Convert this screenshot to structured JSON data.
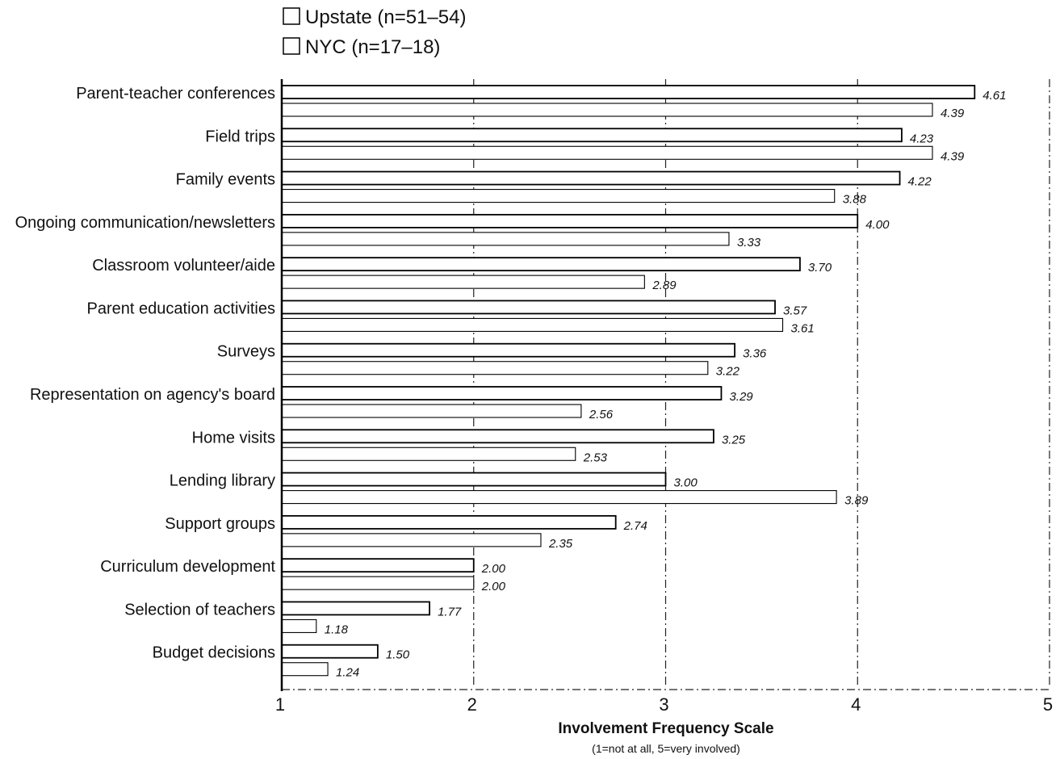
{
  "chart_data": {
    "type": "bar",
    "orientation": "horizontal",
    "title": "",
    "xlabel": "Involvement Frequency Scale",
    "xlabel_note": "(1=not at all, 5=very involved)",
    "xlim": [
      1,
      5
    ],
    "xticks": [
      1,
      2,
      3,
      4,
      5
    ],
    "grid": true,
    "legend_position": "top-left",
    "categories": [
      "Parent-teacher conferences",
      "Field trips",
      "Family events",
      "Ongoing communication/newsletters",
      "Classroom volunteer/aide",
      "Parent education activities",
      "Surveys",
      "Representation on agency's board",
      "Home visits",
      "Lending library",
      "Support groups",
      "Curriculum development",
      "Selection of teachers",
      "Budget decisions"
    ],
    "series": [
      {
        "name": "Upstate (n=51–54)",
        "values": [
          4.61,
          4.23,
          4.22,
          4.0,
          3.7,
          3.57,
          3.36,
          3.29,
          3.25,
          3.0,
          2.74,
          2.0,
          1.77,
          1.5
        ],
        "labels": [
          "4.61",
          "4.23",
          "4.22",
          "4.00",
          "3.70",
          "3.57",
          "3.36",
          "3.29",
          "3.25",
          "3.00",
          "2.74",
          "2.00",
          "1.77",
          "1.50"
        ]
      },
      {
        "name": "NYC (n=17–18)",
        "values": [
          4.39,
          4.39,
          3.88,
          3.33,
          2.89,
          3.61,
          3.22,
          2.56,
          2.53,
          3.89,
          2.35,
          2.0,
          1.18,
          1.24
        ],
        "labels": [
          "4.39",
          "4.39",
          "3.88",
          "3.33",
          "2.89",
          "3.61",
          "3.22",
          "2.56",
          "2.53",
          "3.89",
          "2.35",
          "2.00",
          "1.18",
          "1.24"
        ]
      }
    ],
    "colors": {
      "bar_fill": "#ffffff",
      "bar_stroke": "#000000",
      "axis": "#000000"
    }
  }
}
